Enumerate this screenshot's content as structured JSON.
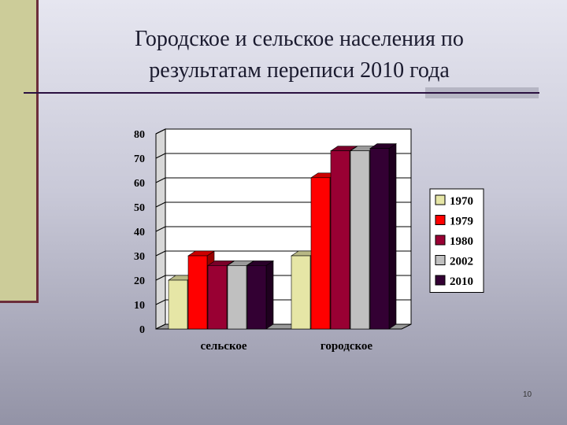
{
  "slide": {
    "title_line1": "Городское и сельское населения по",
    "title_line2": "результатам переписи 2010 года",
    "page_number": "10"
  },
  "chart_data": {
    "type": "bar",
    "title": "",
    "xlabel": "",
    "ylabel": "",
    "categories": [
      "сельское",
      "городское"
    ],
    "series": [
      {
        "name": "1970",
        "values": [
          20,
          30
        ],
        "color": "#e6e6a6"
      },
      {
        "name": "1979",
        "values": [
          30,
          62
        ],
        "color": "#ff0000"
      },
      {
        "name": "1980",
        "values": [
          26,
          73
        ],
        "color": "#990033"
      },
      {
        "name": "2002",
        "values": [
          26,
          73
        ],
        "color": "#c0c0c0"
      },
      {
        "name": "2010",
        "values": [
          26,
          74
        ],
        "color": "#330033"
      }
    ],
    "yticks": [
      "0",
      "10",
      "20",
      "30",
      "40",
      "50",
      "60",
      "70",
      "80"
    ],
    "ylim": [
      0,
      80
    ],
    "grid": true,
    "legend_position": "right"
  }
}
